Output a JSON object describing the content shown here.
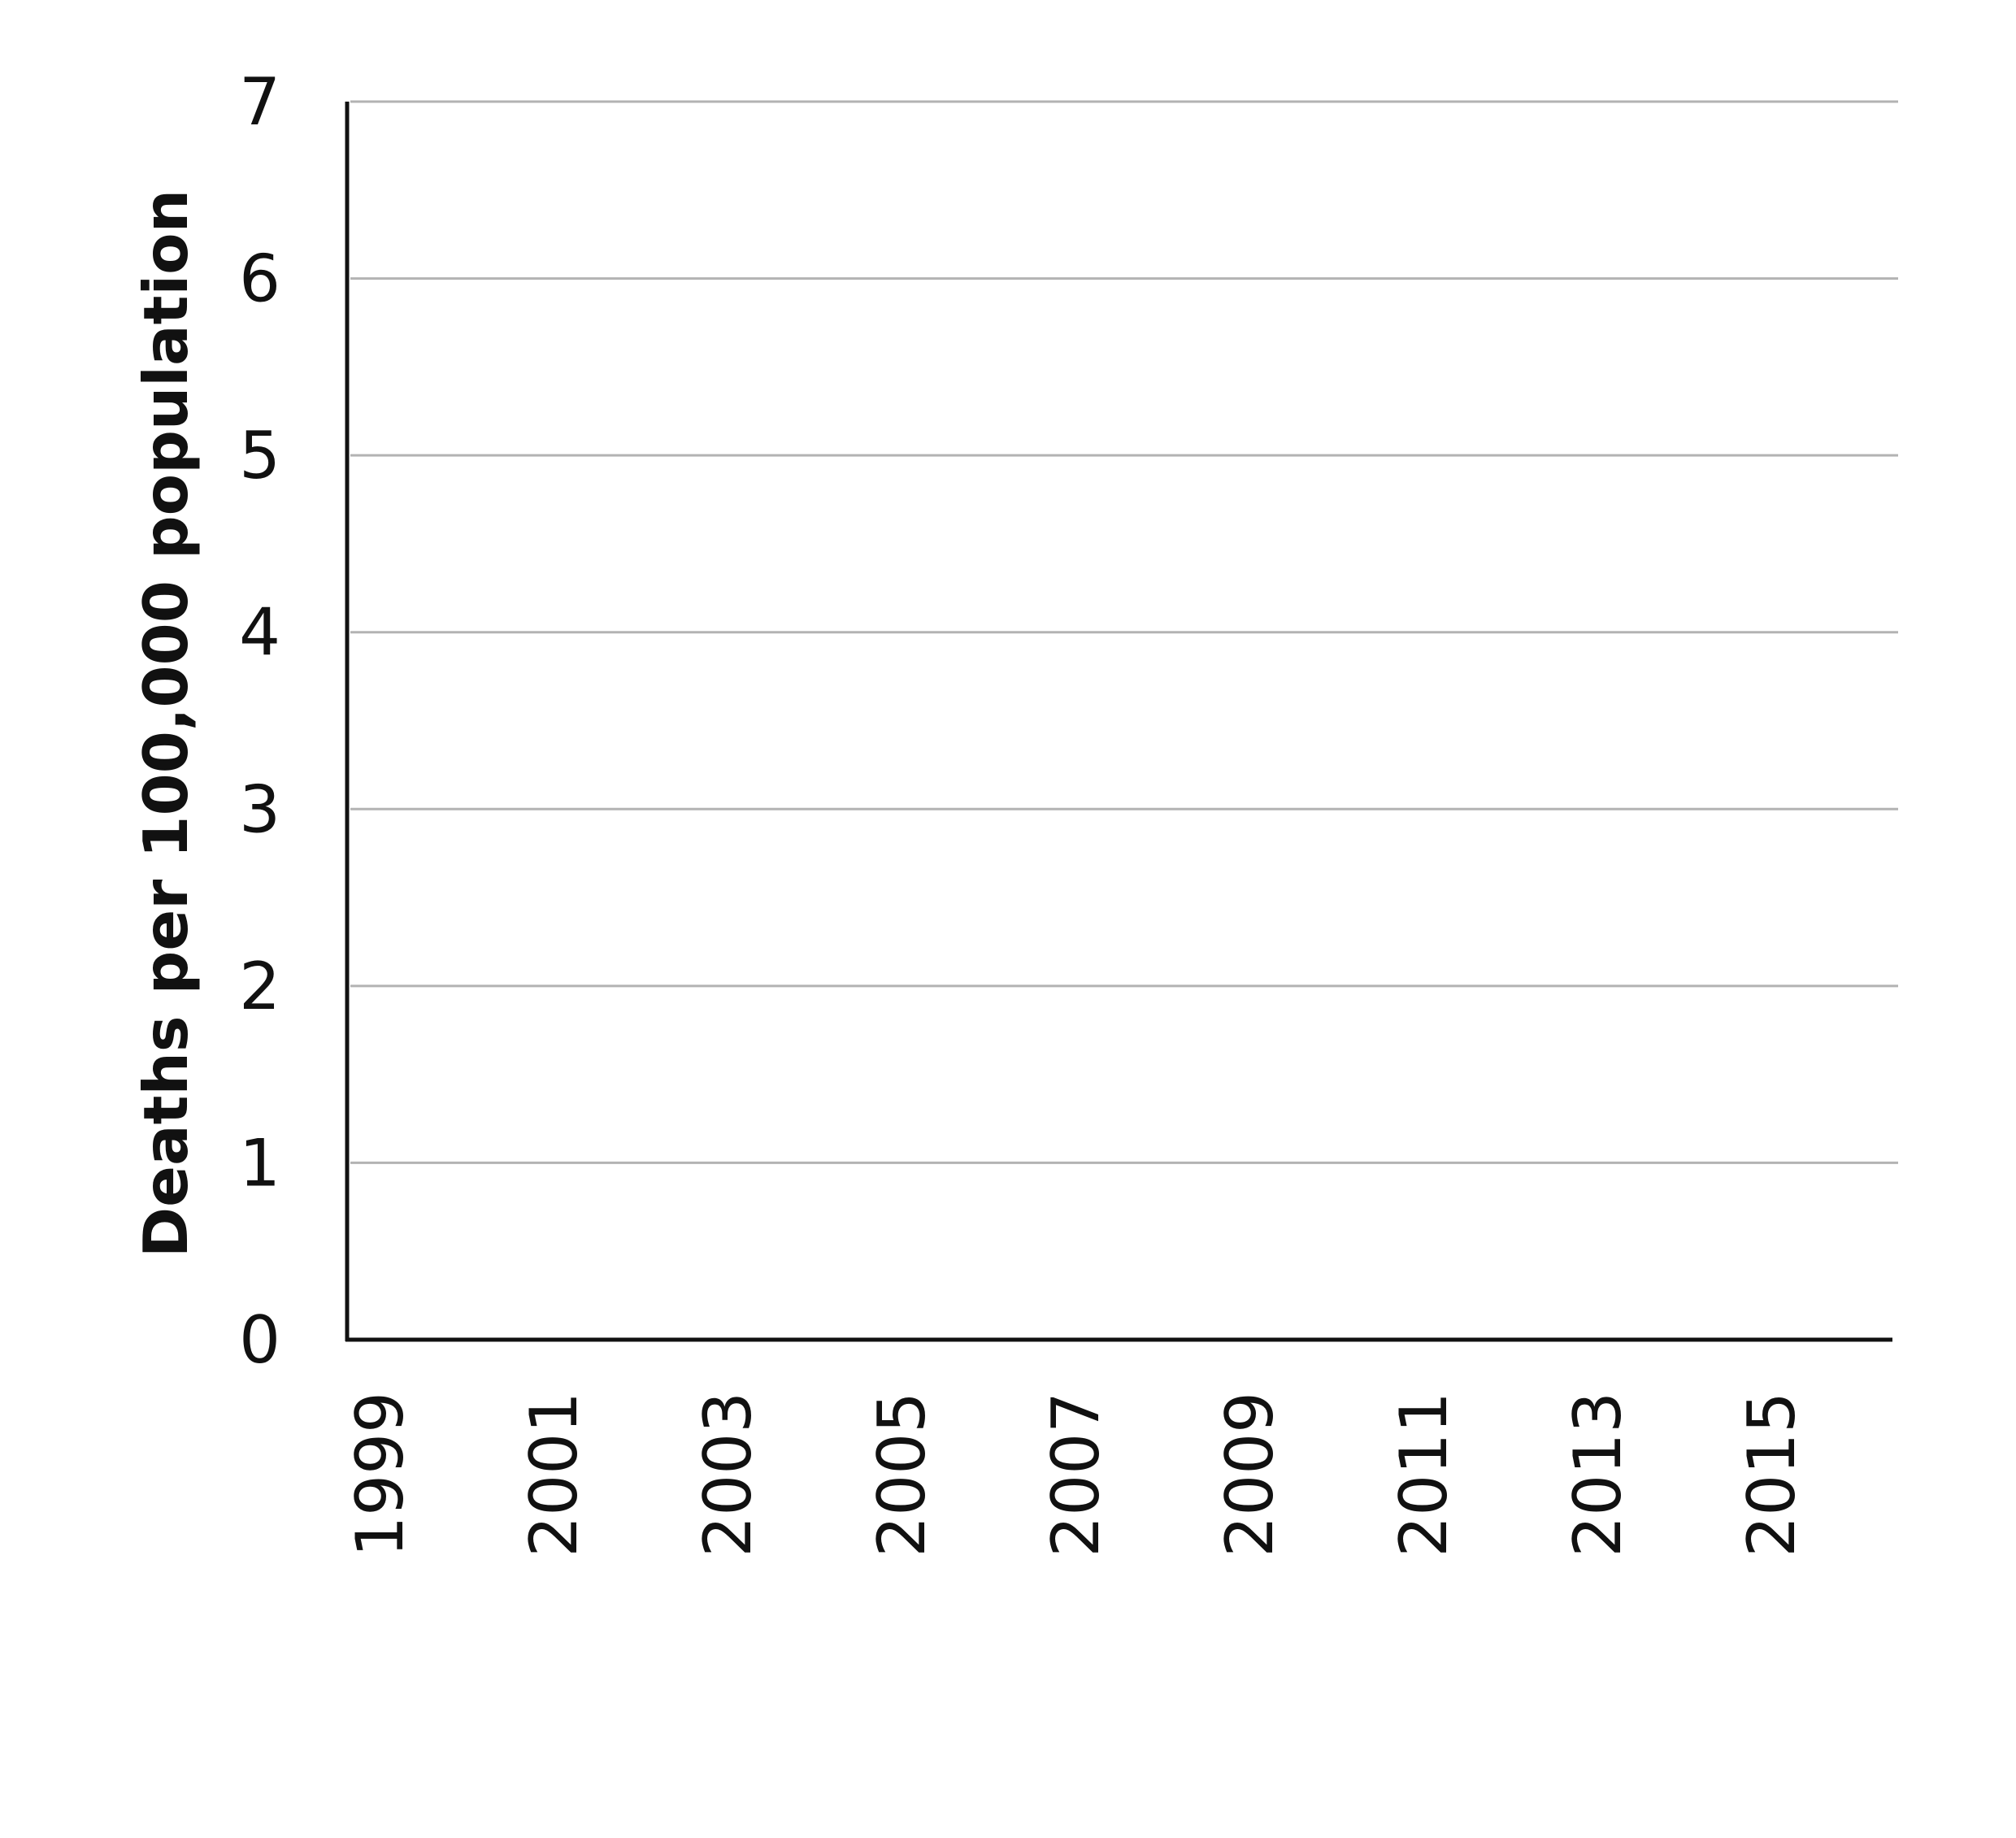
{
  "chart_data": {
    "type": "line",
    "title": "",
    "xlabel": "",
    "ylabel": "Deaths per 100,000 population",
    "ylim": [
      0,
      7
    ],
    "y_ticks": [
      "0",
      "1",
      "2",
      "3",
      "4",
      "5",
      "6",
      "7"
    ],
    "x_ticks": [
      "1999",
      "2001",
      "2003",
      "2005",
      "2007",
      "2009",
      "2011",
      "2013",
      "2015"
    ],
    "x_range": [
      1999,
      2016
    ],
    "grid": true,
    "series": [],
    "colors": {
      "axis": "#111111",
      "grid": "#b3b3b3",
      "text": "#111111"
    }
  }
}
